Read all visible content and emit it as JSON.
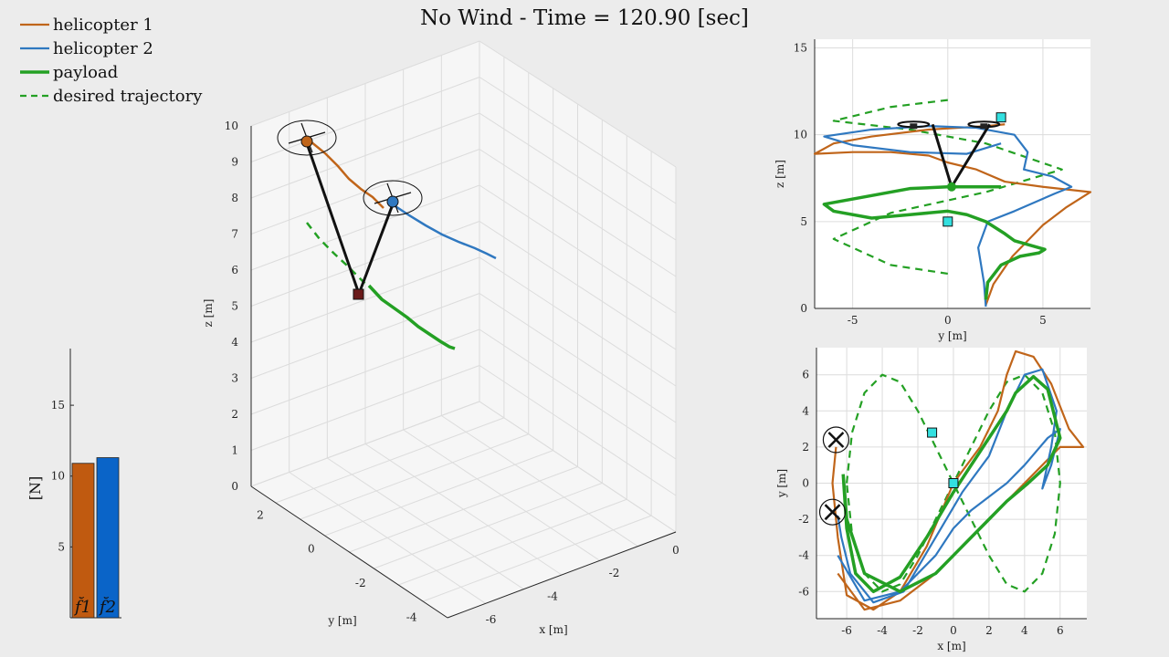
{
  "title": "No Wind - Time = 120.90 [sec]",
  "colors": {
    "helicopter1": "#c0651a",
    "helicopter2": "#2f78c0",
    "payload": "#24a024",
    "desired": "#24a024",
    "cable": "#111111",
    "marker": "#33e0e0",
    "bar1": "#c05a10",
    "bar2": "#0a64c8"
  },
  "legend": [
    {
      "label": "helicopter 1",
      "style": "solid",
      "color_key": "helicopter1"
    },
    {
      "label": "helicopter 2",
      "style": "solid",
      "color_key": "helicopter2"
    },
    {
      "label": "payload",
      "style": "solid",
      "color_key": "payload"
    },
    {
      "label": "desired trajectory",
      "style": "dashed",
      "color_key": "desired"
    }
  ],
  "chart_data": [
    {
      "type": "bar",
      "name": "force-bars",
      "ylabel": "[N]",
      "yticks": [
        5,
        10,
        15
      ],
      "ylim": [
        0,
        19
      ],
      "categories": [
        "f̆1",
        "f̆2"
      ],
      "values": [
        10.9,
        11.3
      ]
    },
    {
      "type": "line3d",
      "name": "3d-view",
      "xlabel": "x [m]",
      "ylabel": "y [m]",
      "zlabel": "z [m]",
      "xticks": [
        "0",
        "-2",
        "-4",
        "-6"
      ],
      "yticks": [
        "2",
        "0",
        "-2",
        "-4"
      ],
      "zticks": [
        "0",
        "1",
        "2",
        "3",
        "4",
        "5",
        "6",
        "7",
        "8",
        "9",
        "10"
      ],
      "grid": true
    },
    {
      "type": "line",
      "name": "side-view",
      "xlabel": "y [m]",
      "ylabel": "z [m]",
      "xlim": [
        -7,
        7.5
      ],
      "ylim": [
        0,
        15.5
      ],
      "xticks": [
        "-5",
        "0",
        "5"
      ],
      "yticks": [
        "0",
        "5",
        "10",
        "15"
      ],
      "grid": true,
      "series": [
        {
          "key": "desired",
          "x": [
            0,
            -3,
            -6,
            -3,
            2,
            6,
            2,
            -2,
            -6,
            -3,
            0
          ],
          "y": [
            2,
            2.5,
            4,
            5.5,
            6.7,
            8,
            9.5,
            10.3,
            10.8,
            11.6,
            12
          ]
        },
        {
          "key": "helicopter1",
          "x": [
            2,
            2.4,
            3.4,
            5,
            6.2,
            7.5,
            5,
            3,
            1.5,
            0,
            -1,
            -3,
            -5,
            -7,
            -6,
            -4,
            -1,
            2,
            3
          ],
          "y": [
            0.2,
            1.4,
            3,
            4.8,
            5.8,
            6.7,
            7,
            7.3,
            8,
            8.4,
            8.8,
            9,
            9,
            8.9,
            9.5,
            9.9,
            10.3,
            10.5,
            10.6
          ]
        },
        {
          "key": "helicopter2",
          "x": [
            2,
            1.9,
            1.6,
            2.1,
            3.5,
            5.6,
            6.5,
            5.5,
            4,
            4.2,
            3.5,
            1.5,
            -1,
            -4,
            -6.5,
            -5,
            -2,
            1,
            2.8
          ],
          "y": [
            0.1,
            1.5,
            3.5,
            5,
            5.6,
            6.6,
            7,
            7.6,
            8,
            9,
            10,
            10.4,
            10.5,
            10.3,
            9.9,
            9.4,
            9,
            8.9,
            9.5
          ]
        },
        {
          "key": "payload",
          "x": [
            2,
            2.1,
            2.8,
            3.8,
            4.8,
            5.1,
            3.5,
            3,
            2,
            1,
            0,
            -2,
            -4,
            -6,
            -6.5,
            -4,
            -2,
            0,
            1.5,
            2.8
          ],
          "y": [
            0.5,
            1.5,
            2.5,
            3,
            3.2,
            3.4,
            3.9,
            4.3,
            5,
            5.4,
            5.6,
            5.4,
            5.2,
            5.6,
            6,
            6.5,
            6.9,
            7,
            7,
            7
          ]
        }
      ],
      "markers": [
        {
          "x": 0,
          "y": 5
        },
        {
          "x": 2.8,
          "y": 11
        }
      ],
      "cables": [
        [
          -0.8,
          10.6,
          0.2,
          7
        ],
        [
          2.2,
          10.6,
          0.2,
          7
        ]
      ],
      "helicopters": [
        [
          -1.8,
          10.6
        ],
        [
          1.9,
          10.6
        ]
      ]
    },
    {
      "type": "line",
      "name": "top-view",
      "xlabel": "x [m]",
      "ylabel": "y [m]",
      "xlim": [
        -7.7,
        7.5
      ],
      "ylim": [
        -7.5,
        7.5
      ],
      "xticks": [
        "-6",
        "-4",
        "-2",
        "0",
        "2",
        "4",
        "6"
      ],
      "yticks": [
        "-6",
        "-4",
        "-2",
        "0",
        "2",
        "4",
        "6"
      ],
      "grid": true,
      "series": [
        {
          "key": "desired",
          "x": [
            -6,
            -5.7,
            -5,
            -4,
            -3,
            -2,
            -1,
            0,
            1,
            2,
            3,
            4,
            5,
            5.7,
            6,
            5.7,
            5,
            4,
            3,
            2,
            1,
            0,
            -1,
            -2,
            -3,
            -4,
            -5,
            -5.7,
            -6
          ],
          "y": [
            0,
            2.8,
            5,
            6,
            5.6,
            4,
            2,
            0,
            -2,
            -4,
            -5.6,
            -6,
            -5,
            -2.8,
            0,
            2.8,
            5,
            6,
            5.6,
            4,
            2,
            0,
            -2,
            -4,
            -5.6,
            -6,
            -5,
            -2.8,
            0
          ]
        },
        {
          "key": "helicopter1",
          "x": [
            -6.6,
            -6.8,
            -6.5,
            -6,
            -4.5,
            -3,
            -1.5,
            0,
            1.5,
            2.5,
            3,
            3.5,
            4.5,
            5.5,
            6.5,
            7.3,
            6,
            5,
            4,
            3,
            2,
            1,
            0,
            -1,
            -3,
            -5,
            -6.5
          ],
          "y": [
            2,
            0,
            -3,
            -6.2,
            -7,
            -6,
            -3.5,
            0,
            2,
            4,
            6,
            7.3,
            7,
            5.5,
            3,
            2,
            2,
            1,
            0,
            -1,
            -2,
            -3,
            -4,
            -5,
            -6.5,
            -7,
            -5
          ]
        },
        {
          "key": "helicopter2",
          "x": [
            -6.5,
            -6.3,
            -5.8,
            -4.5,
            -2.8,
            -1,
            0.5,
            2,
            3,
            4,
            5,
            5.8,
            5.5,
            5,
            5.5,
            6,
            5.3,
            4,
            3,
            1,
            0,
            -1,
            -3,
            -5,
            -6.5
          ],
          "y": [
            -1.8,
            -3,
            -5,
            -6.6,
            -6,
            -3,
            -0.5,
            1.5,
            4,
            6,
            6.3,
            4,
            2,
            -0.3,
            1,
            3,
            2.5,
            1,
            0,
            -1.5,
            -2.5,
            -4,
            -6,
            -6.5,
            -4
          ]
        },
        {
          "key": "payload",
          "x": [
            -6.2,
            -6,
            -5.5,
            -4.5,
            -3,
            -1.5,
            0,
            1,
            2,
            3,
            3.5,
            4.5,
            5.3,
            6,
            5.3,
            4.2,
            3,
            2,
            1,
            0,
            -1,
            -3,
            -5,
            -6,
            -6.2
          ],
          "y": [
            0.5,
            -2.5,
            -5,
            -6,
            -5.2,
            -3,
            -0.5,
            1,
            2.5,
            4,
            5,
            5.9,
            5.2,
            2.5,
            1,
            0,
            -1,
            -2,
            -3,
            -4,
            -5,
            -6,
            -5,
            -2,
            0.5
          ]
        }
      ],
      "markers": [
        {
          "x": -1.2,
          "y": 2.8
        },
        {
          "x": 0,
          "y": 0
        }
      ],
      "helicopters": [
        [
          -6.6,
          2.4
        ],
        [
          -6.8,
          -1.6
        ]
      ]
    }
  ]
}
